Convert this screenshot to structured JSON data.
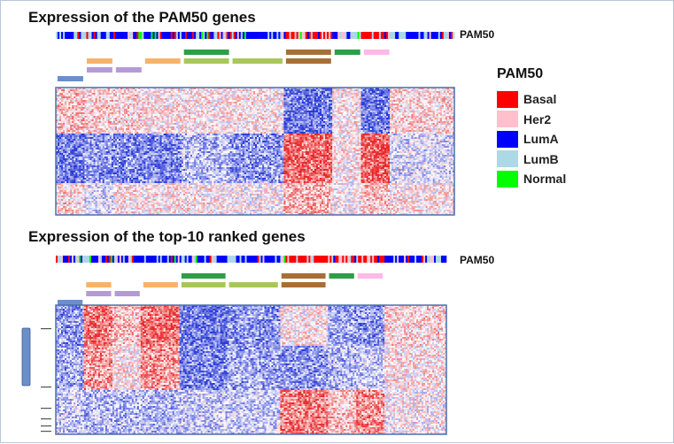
{
  "panels": [
    {
      "title": "Expression of the PAM50 genes",
      "track_label": "PAM50",
      "column_groups": [
        {
          "name": "A",
          "bands": [
            {
              "row": 4,
              "color": "#6b8fc9"
            }
          ],
          "mix": [
            0.08,
            0.06,
            0.52,
            0.3,
            0.04
          ]
        },
        {
          "name": "B",
          "bands": [
            {
              "row": 3,
              "color": "#b59ad8"
            },
            {
              "row": 2,
              "color": "#f6b36a"
            }
          ],
          "mix": [
            0.08,
            0.06,
            0.52,
            0.3,
            0.04
          ]
        },
        {
          "name": "C",
          "bands": [
            {
              "row": 3,
              "color": "#b59ad8"
            }
          ],
          "mix": [
            0.1,
            0.1,
            0.55,
            0.2,
            0.05
          ]
        },
        {
          "name": "D",
          "bands": [
            {
              "row": 2,
              "color": "#f6b36a"
            }
          ],
          "mix": [
            0.06,
            0.06,
            0.62,
            0.22,
            0.04
          ]
        },
        {
          "name": "E",
          "bands": [
            {
              "row": 1,
              "color": "#2f9e44"
            },
            {
              "row": 2,
              "color": "#a8c75a"
            }
          ],
          "mix": [
            0.1,
            0.15,
            0.4,
            0.3,
            0.05
          ]
        },
        {
          "name": "F",
          "bands": [
            {
              "row": 2,
              "color": "#a8c75a"
            }
          ],
          "mix": [
            0.05,
            0.05,
            0.6,
            0.28,
            0.02
          ]
        },
        {
          "name": "G",
          "bands": [
            {
              "row": 1,
              "color": "#a86f35"
            },
            {
              "row": 2,
              "color": "#a86f35"
            }
          ],
          "mix": [
            0.55,
            0.25,
            0.08,
            0.1,
            0.02
          ]
        },
        {
          "name": "H",
          "bands": [
            {
              "row": 1,
              "color": "#2f9e44"
            }
          ],
          "mix": [
            0.3,
            0.25,
            0.2,
            0.22,
            0.03
          ]
        },
        {
          "name": "I",
          "bands": [
            {
              "row": 1,
              "color": "#ffb8e8"
            }
          ],
          "mix": [
            0.6,
            0.2,
            0.08,
            0.1,
            0.02
          ]
        },
        {
          "name": "J",
          "bands": [],
          "mix": [
            0.08,
            0.08,
            0.5,
            0.32,
            0.02
          ]
        }
      ],
      "gene_blocks": [
        {
          "name": "g1",
          "pattern": [
            0.3,
            0.25,
            0.2,
            0.1,
            0.1,
            0.1,
            -0.8,
            0.1,
            -0.8,
            0.2
          ]
        },
        {
          "name": "g2",
          "pattern": [
            -0.8,
            -0.6,
            -0.7,
            -0.7,
            -0.4,
            -0.6,
            0.85,
            0.1,
            0.85,
            -0.2
          ]
        },
        {
          "name": "g3",
          "pattern": [
            0.2,
            -0.2,
            0.1,
            0.1,
            0.1,
            0.0,
            0.4,
            0.0,
            0.3,
            0.1
          ]
        }
      ]
    },
    {
      "title": "Expression of the top-10 ranked genes",
      "track_label": "PAM50",
      "column_groups": [
        {
          "name": "A",
          "bands": [
            {
              "row": 4,
              "color": "#6b8fc9"
            }
          ],
          "mix": [
            0.08,
            0.06,
            0.52,
            0.3,
            0.04
          ]
        },
        {
          "name": "B",
          "bands": [
            {
              "row": 3,
              "color": "#b59ad8"
            },
            {
              "row": 2,
              "color": "#f6b36a"
            }
          ],
          "mix": [
            0.08,
            0.06,
            0.52,
            0.3,
            0.04
          ]
        },
        {
          "name": "C",
          "bands": [
            {
              "row": 3,
              "color": "#b59ad8"
            }
          ],
          "mix": [
            0.1,
            0.1,
            0.55,
            0.2,
            0.05
          ]
        },
        {
          "name": "D",
          "bands": [
            {
              "row": 2,
              "color": "#f6b36a"
            }
          ],
          "mix": [
            0.06,
            0.06,
            0.62,
            0.22,
            0.04
          ]
        },
        {
          "name": "E",
          "bands": [
            {
              "row": 1,
              "color": "#2f9e44"
            },
            {
              "row": 2,
              "color": "#a8c75a"
            }
          ],
          "mix": [
            0.1,
            0.15,
            0.4,
            0.3,
            0.05
          ]
        },
        {
          "name": "F",
          "bands": [
            {
              "row": 2,
              "color": "#a8c75a"
            }
          ],
          "mix": [
            0.05,
            0.05,
            0.6,
            0.28,
            0.02
          ]
        },
        {
          "name": "G",
          "bands": [
            {
              "row": 1,
              "color": "#a86f35"
            },
            {
              "row": 2,
              "color": "#a86f35"
            }
          ],
          "mix": [
            0.55,
            0.25,
            0.08,
            0.1,
            0.02
          ]
        },
        {
          "name": "H",
          "bands": [
            {
              "row": 1,
              "color": "#2f9e44"
            }
          ],
          "mix": [
            0.3,
            0.25,
            0.2,
            0.22,
            0.03
          ]
        },
        {
          "name": "I",
          "bands": [
            {
              "row": 1,
              "color": "#ffb8e8"
            }
          ],
          "mix": [
            0.6,
            0.2,
            0.08,
            0.1,
            0.02
          ]
        },
        {
          "name": "J",
          "bands": [],
          "mix": [
            0.08,
            0.08,
            0.5,
            0.32,
            0.02
          ]
        }
      ],
      "gene_blocks": [
        {
          "name": "g1",
          "pattern": [
            -0.6,
            0.75,
            0.3,
            0.75,
            -0.8,
            -0.6,
            0.1,
            -0.5,
            -0.6,
            0.2
          ]
        },
        {
          "name": "g2",
          "pattern": [
            -0.5,
            0.55,
            0.1,
            0.55,
            -0.7,
            -0.5,
            -0.6,
            -0.4,
            -0.3,
            0.1
          ]
        },
        {
          "name": "g3",
          "pattern": [
            -0.3,
            -0.4,
            -0.4,
            -0.4,
            -0.3,
            -0.3,
            0.7,
            0.3,
            0.6,
            0.0
          ]
        }
      ]
    }
  ],
  "legend": {
    "title": "PAM50",
    "items": [
      {
        "label": "Basal",
        "color": "#ff0000"
      },
      {
        "label": "Her2",
        "color": "#ffc0cb"
      },
      {
        "label": "LumA",
        "color": "#0000ff"
      },
      {
        "label": "LumB",
        "color": "#add8e6"
      },
      {
        "label": "Normal",
        "color": "#00ff00"
      }
    ]
  },
  "colors": {
    "low": "#2a3ad6",
    "mid": "#ffffff",
    "high": "#e8282a",
    "heatmap_border": "#4d6fa8",
    "side_bar": "#6b8fc9"
  }
}
